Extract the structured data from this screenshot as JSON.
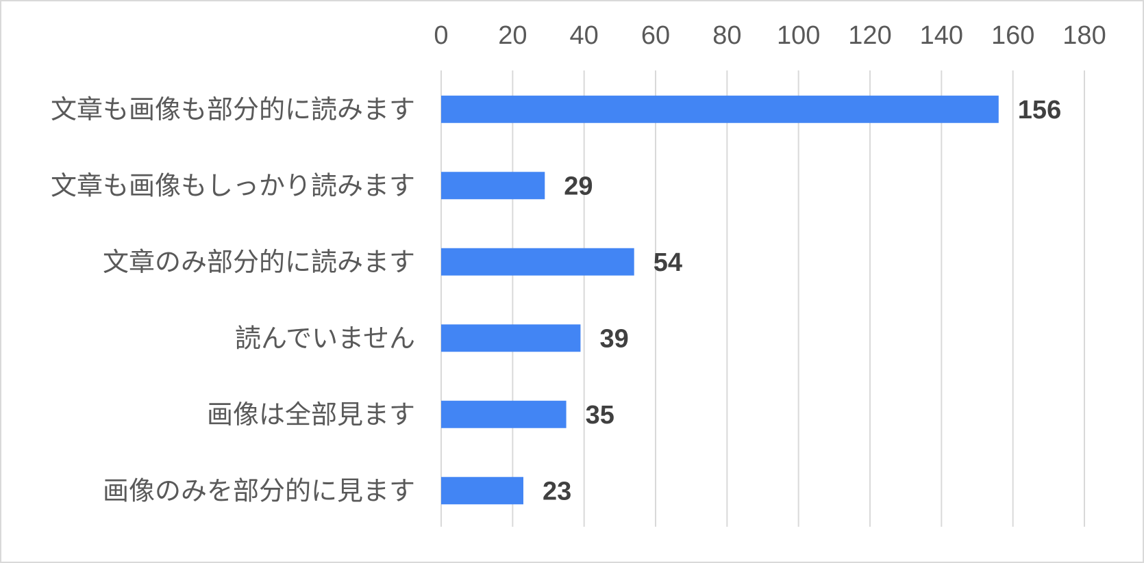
{
  "chart_data": {
    "type": "bar",
    "orientation": "horizontal",
    "categories": [
      "文章も画像も部分的に読みます",
      "文章も画像もしっかり読みます",
      "文章のみ部分的に読みます",
      "読んでいません",
      "画像は全部見ます",
      "画像のみを部分的に見ます"
    ],
    "values": [
      156,
      29,
      54,
      39,
      35,
      23
    ],
    "ticks": [
      "0",
      "20",
      "40",
      "60",
      "80",
      "100",
      "120",
      "140",
      "160",
      "180"
    ],
    "xlim": [
      0,
      180
    ],
    "x_axis_position": "top",
    "grid": true,
    "data_labels": true,
    "legend": "none",
    "bar_color": "#4285f4",
    "grid_color": "#d9d9d9"
  }
}
